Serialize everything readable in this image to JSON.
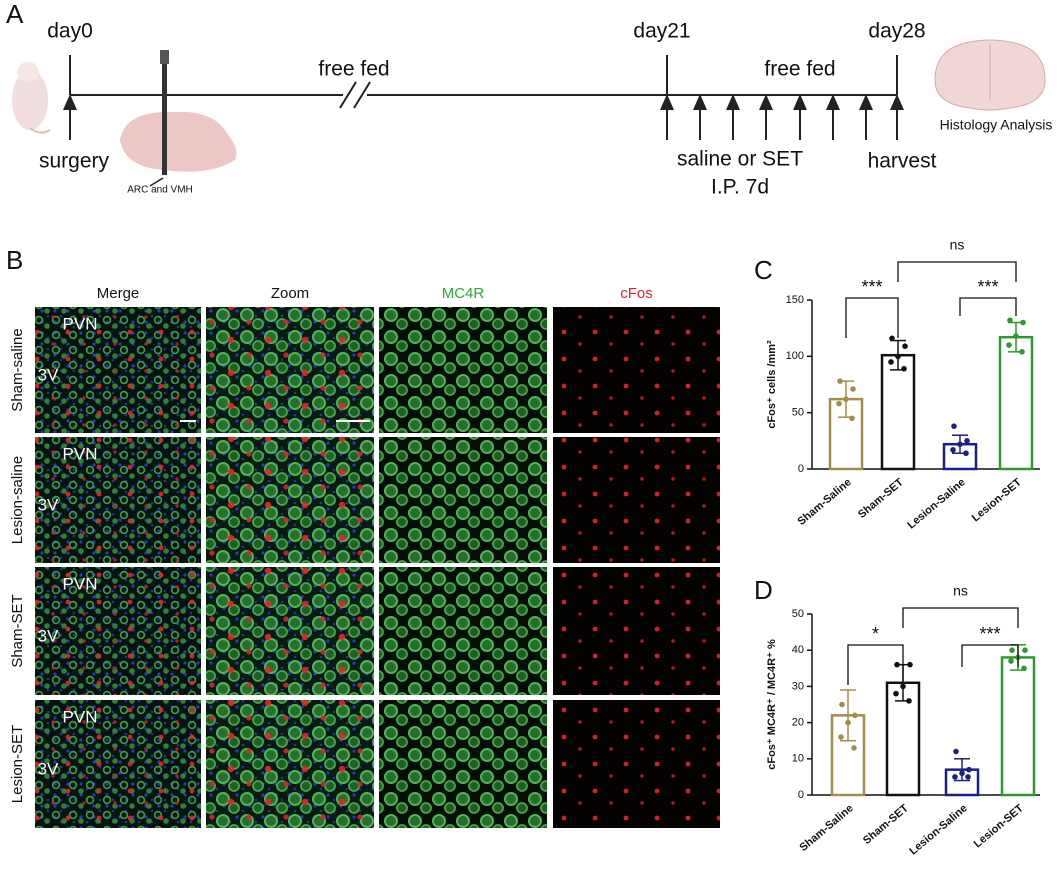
{
  "panel_a": {
    "label": "A",
    "day0": "day0",
    "free_fed_1": "free fed",
    "day21": "day21",
    "free_fed_2": "free fed",
    "day28": "day28",
    "surgery": "surgery",
    "site": "ARC and VMH",
    "treatment": "saline or SET",
    "route": "I.P.  7d",
    "harvest": "harvest",
    "histology": "Histology Analysis"
  },
  "panel_b": {
    "label": "B",
    "columns": [
      "Merge",
      "Zoom",
      "MC4R",
      "cFos"
    ],
    "rows": [
      "Sham-saline",
      "Lesion-saline",
      "Sham-SET",
      "Lesion-SET"
    ],
    "region_labels": [
      "PVN",
      "3V"
    ]
  },
  "chart_data": [
    {
      "type": "bar",
      "panel": "C",
      "ylabel": "cFos⁺ cells /mm²",
      "categories": [
        "Sham-Saline",
        "Sham-SET",
        "Lesion-Saline",
        "Lesion-SET"
      ],
      "colors": [
        "#a38d4d",
        "#111111",
        "#1c1f8a",
        "#2e9930"
      ],
      "values": [
        62,
        101,
        22,
        117
      ],
      "errors": [
        16,
        13,
        8,
        13
      ],
      "points": [
        [
          78,
          71,
          62,
          58,
          45
        ],
        [
          116,
          109,
          100,
          95,
          89
        ],
        [
          38,
          25,
          22,
          17,
          14
        ],
        [
          132,
          130,
          118,
          110,
          104
        ]
      ],
      "ylim": [
        0,
        150
      ],
      "yticks": [
        0,
        50,
        100,
        150
      ],
      "annotations": [
        "***",
        "ns",
        "***"
      ]
    },
    {
      "type": "bar",
      "panel": "D",
      "ylabel": "cFos⁺ MC4R⁺ / MC4R⁺ %",
      "categories": [
        "Sham-Saline",
        "Sham-SET",
        "Lesion-Saline",
        "Lesion-SET"
      ],
      "colors": [
        "#a38d4d",
        "#111111",
        "#1c1f8a",
        "#2e9930"
      ],
      "values": [
        22,
        31,
        7,
        38
      ],
      "errors": [
        7,
        5,
        3,
        3.5
      ],
      "points": [
        [
          25,
          22,
          20,
          16,
          13
        ],
        [
          36,
          36,
          30,
          28,
          26
        ],
        [
          12,
          7,
          6,
          5,
          5
        ],
        [
          40,
          40,
          38,
          37,
          35
        ]
      ],
      "ylim": [
        0,
        50
      ],
      "yticks": [
        0,
        10,
        20,
        30,
        40,
        50
      ],
      "annotations": [
        "*",
        "ns",
        "***"
      ]
    }
  ]
}
